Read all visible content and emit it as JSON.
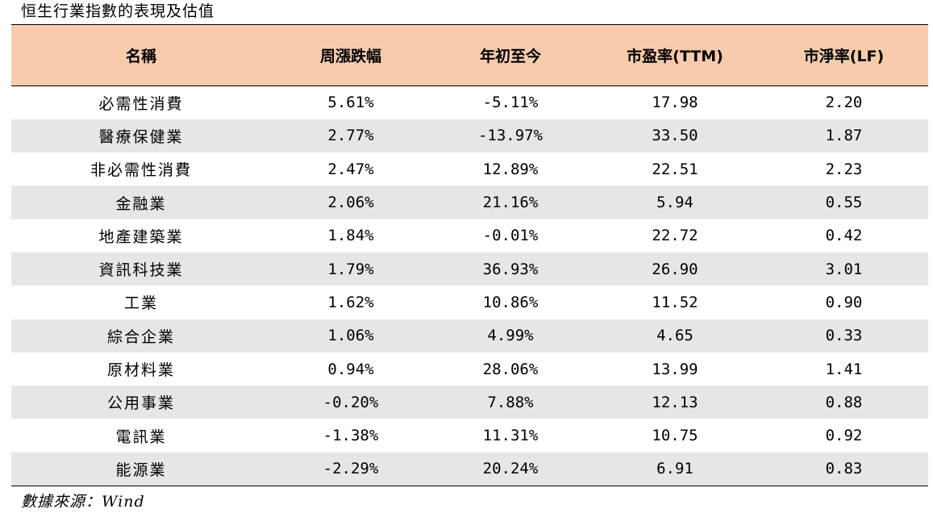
{
  "title": "恒生行業指數的表現及估值",
  "table": {
    "headers": [
      "名稱",
      "周漲跌幅",
      "年初至今",
      "市盈率(TTM)",
      "市淨率(LF)"
    ],
    "rows": [
      [
        "必需性消費",
        "5.61%",
        "-5.11%",
        "17.98",
        "2.20"
      ],
      [
        "醫療保健業",
        "2.77%",
        "-13.97%",
        "33.50",
        "1.87"
      ],
      [
        "非必需性消費",
        "2.47%",
        "12.89%",
        "22.51",
        "2.23"
      ],
      [
        "金融業",
        "2.06%",
        "21.16%",
        "5.94",
        "0.55"
      ],
      [
        "地產建築業",
        "1.84%",
        "-0.01%",
        "22.72",
        "0.42"
      ],
      [
        "資訊科技業",
        "1.79%",
        "36.93%",
        "26.90",
        "3.01"
      ],
      [
        "工業",
        "1.62%",
        "10.86%",
        "11.52",
        "0.90"
      ],
      [
        "綜合企業",
        "1.06%",
        "4.99%",
        "4.65",
        "0.33"
      ],
      [
        "原材料業",
        "0.94%",
        "28.06%",
        "13.99",
        "1.41"
      ],
      [
        "公用事業",
        "-0.20%",
        "7.88%",
        "12.13",
        "0.88"
      ],
      [
        "電訊業",
        "-1.38%",
        "11.31%",
        "10.75",
        "0.92"
      ],
      [
        "能源業",
        "-2.29%",
        "20.24%",
        "6.91",
        "0.83"
      ]
    ]
  },
  "source": "數據來源：Wind",
  "colors": {
    "header_bg": "#f8cbad",
    "stripe_bg": "#e7e6e6"
  }
}
